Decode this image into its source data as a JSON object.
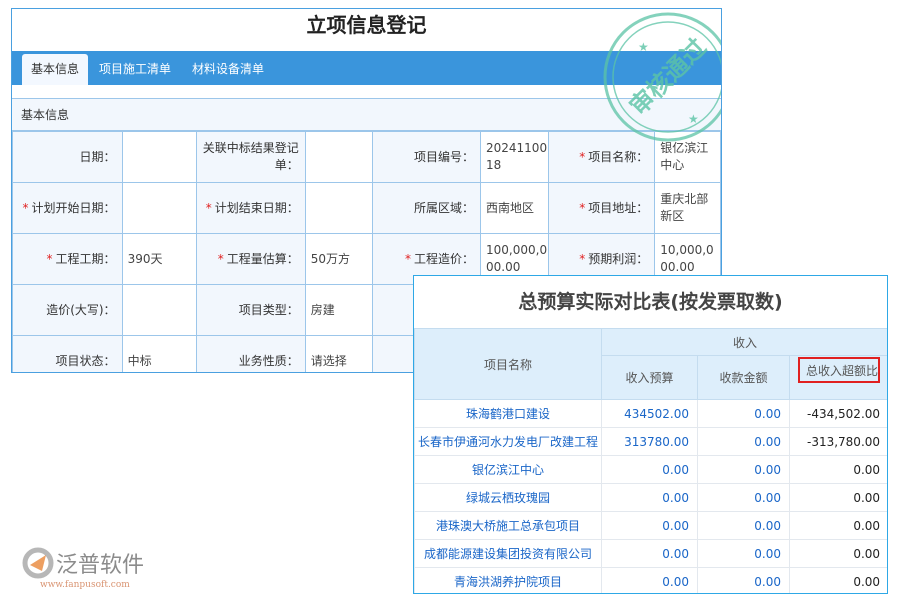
{
  "form": {
    "title": "立项信息登记",
    "tabs": [
      {
        "label": "基本信息",
        "active": true
      },
      {
        "label": "项目施工清单"
      },
      {
        "label": "材料设备清单"
      }
    ],
    "section": "基本信息",
    "rows": [
      [
        {
          "label": "日期：",
          "value": ""
        },
        {
          "label": "关联中标结果登记单：",
          "value": ""
        },
        {
          "label": "项目编号：",
          "value": "2024110018"
        },
        {
          "label": "项目名称：",
          "required": true,
          "value": "银亿滨江中心"
        }
      ],
      [
        {
          "label": "计划开始日期：",
          "required": true,
          "value": ""
        },
        {
          "label": "计划结束日期：",
          "required": true,
          "value": ""
        },
        {
          "label": "所属区域：",
          "value": "西南地区"
        },
        {
          "label": "项目地址：",
          "required": true,
          "value": "重庆北部新区"
        }
      ],
      [
        {
          "label": "工程工期：",
          "required": true,
          "value": "390天"
        },
        {
          "label": "工程量估算：",
          "required": true,
          "value": "50万方"
        },
        {
          "label": "工程造价：",
          "required": true,
          "value": "100,000,000.00"
        },
        {
          "label": "预期利润：",
          "required": true,
          "value": "10,000,000.00"
        }
      ],
      [
        {
          "label": "造价(大写)：",
          "value": ""
        },
        {
          "label": "项目类型：",
          "value": "房建"
        },
        {
          "label": "",
          "value": ""
        },
        {
          "label": "",
          "value": ""
        }
      ],
      [
        {
          "label": "项目状态：",
          "value": "中标"
        },
        {
          "label": "业务性质：",
          "value": "请选择"
        },
        {
          "label": "",
          "value": ""
        },
        {
          "label": "",
          "value": ""
        }
      ]
    ],
    "stamp_text": "审核通过",
    "colors": {
      "tabbar": "#3a95dc",
      "stamp": "#5cc4a6",
      "required": "#e02020"
    }
  },
  "report": {
    "title": "总预算实际对比表(按发票取数)",
    "headers": {
      "name": "项目名称",
      "group": "收入",
      "budget": "收入预算",
      "received": "收款金额",
      "excess": "总收入超额比"
    },
    "rows": [
      {
        "name": "珠海鹤港口建设",
        "budget": "434502.00",
        "received": "0.00",
        "excess": "-434,502.00"
      },
      {
        "name": "长春市伊通河水力发电厂改建工程",
        "budget": "313780.00",
        "received": "0.00",
        "excess": "-313,780.00"
      },
      {
        "name": "银亿滨江中心",
        "budget": "0.00",
        "received": "0.00",
        "excess": "0.00"
      },
      {
        "name": "绿城云栖玫瑰园",
        "budget": "0.00",
        "received": "0.00",
        "excess": "0.00"
      },
      {
        "name": "港珠澳大桥施工总承包项目",
        "budget": "0.00",
        "received": "0.00",
        "excess": "0.00"
      },
      {
        "name": "成都能源建设集团投资有限公司",
        "budget": "0.00",
        "received": "0.00",
        "excess": "0.00"
      },
      {
        "name": "青海洪湖养护院项目",
        "budget": "0.00",
        "received": "0.00",
        "excess": "0.00"
      }
    ]
  },
  "watermark": {
    "brand": "泛普软件",
    "url": "www.fanpusoft.com"
  }
}
